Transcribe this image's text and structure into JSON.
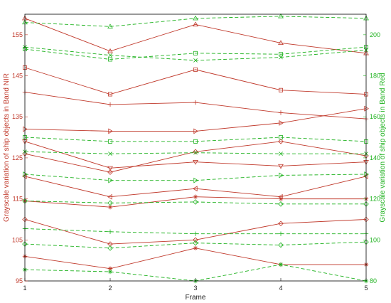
{
  "colors": {
    "nir": "#c0392b",
    "red": "#1fb21f",
    "frame": "#000000",
    "grid": "#e6e6e6"
  },
  "chart_data": {
    "type": "line",
    "xlabel": "Frame",
    "ylabel_left": "Grayscale variation of ship objects in Band NIR",
    "ylabel_right": "Grayscale variation of ship objects in Band Red",
    "x": [
      1,
      2,
      3,
      4,
      5
    ],
    "x_ticks": [
      "1",
      "2",
      "3",
      "4",
      "5"
    ],
    "xlim": [
      1,
      5
    ],
    "ylim_left": [
      95,
      160
    ],
    "yticks_left": [
      "95",
      "105",
      "115",
      "125",
      "135",
      "145",
      "155"
    ],
    "ylim_right": [
      80,
      210
    ],
    "yticks_right": [
      "80",
      "100",
      "120",
      "140",
      "160",
      "180",
      "200"
    ],
    "grid": false,
    "legend": "none",
    "series": [
      {
        "axis": "left",
        "style": "solid",
        "marker": "triangle-up",
        "values": [
          159,
          151,
          157.5,
          153,
          150.5
        ]
      },
      {
        "axis": "left",
        "style": "solid",
        "marker": "square",
        "values": [
          147,
          140.5,
          146.5,
          141.5,
          140.5
        ]
      },
      {
        "axis": "left",
        "style": "solid",
        "marker": "plus",
        "values": [
          141,
          138,
          138.5,
          136,
          134.5
        ]
      },
      {
        "axis": "left",
        "style": "solid",
        "marker": "triangle-right",
        "values": [
          132,
          131.5,
          131.5,
          133.5,
          137
        ]
      },
      {
        "axis": "left",
        "style": "solid",
        "marker": "diamond",
        "values": [
          126,
          121.5,
          126.5,
          129,
          125.5
        ]
      },
      {
        "axis": "left",
        "style": "solid",
        "marker": "triangle-down",
        "values": [
          129,
          122.5,
          124,
          123,
          124
        ]
      },
      {
        "axis": "left",
        "style": "solid",
        "marker": "triangle-left",
        "values": [
          120.5,
          115.5,
          117.5,
          115.5,
          120.5
        ]
      },
      {
        "axis": "left",
        "style": "solid",
        "marker": "asterisk",
        "values": [
          114.5,
          113,
          115.5,
          115,
          115
        ]
      },
      {
        "axis": "left",
        "style": "solid",
        "marker": "diamond",
        "values": [
          110,
          104,
          105,
          109,
          110
        ]
      },
      {
        "axis": "left",
        "style": "solid",
        "marker": "asterisk",
        "values": [
          101,
          98,
          103,
          99,
          99
        ]
      },
      {
        "axis": "right",
        "style": "dashed",
        "marker": "triangle-up",
        "values": [
          206,
          204,
          208,
          209,
          208
        ]
      },
      {
        "axis": "right",
        "style": "dashed",
        "marker": "square",
        "values": [
          193,
          188,
          191,
          190.5,
          194
        ]
      },
      {
        "axis": "right",
        "style": "dashed",
        "marker": "x",
        "values": [
          194,
          190,
          187.5,
          189,
          192.5
        ]
      },
      {
        "axis": "right",
        "style": "dashed",
        "marker": "square",
        "values": [
          150,
          148,
          148,
          150,
          148
        ]
      },
      {
        "axis": "right",
        "style": "dashed",
        "marker": "x",
        "values": [
          143,
          142,
          142.5,
          142,
          142
        ]
      },
      {
        "axis": "right",
        "style": "dashed",
        "marker": "triangle-right",
        "values": [
          132,
          129,
          129,
          131.5,
          132
        ]
      },
      {
        "axis": "right",
        "style": "dashed",
        "marker": "diamond",
        "values": [
          119,
          118,
          118.5,
          117.5,
          117.5
        ]
      },
      {
        "axis": "right",
        "style": "dashed",
        "marker": "plus",
        "values": [
          105.5,
          104,
          103,
          103,
          103
        ]
      },
      {
        "axis": "right",
        "style": "dashed",
        "marker": "diamond",
        "values": [
          98,
          96,
          98.5,
          97.5,
          99
        ]
      },
      {
        "axis": "right",
        "style": "dashed",
        "marker": "asterisk",
        "values": [
          85.5,
          84.5,
          80,
          88,
          80
        ]
      }
    ]
  }
}
